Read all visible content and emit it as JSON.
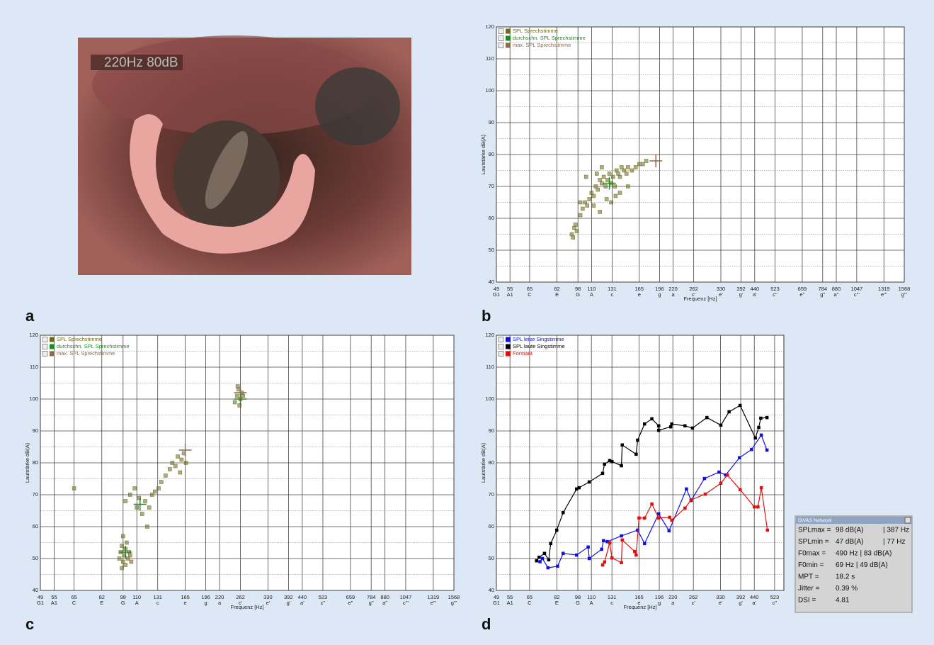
{
  "photo": {
    "panel_label": "a",
    "overlay": "220Hz  80dB"
  },
  "chart_data": [
    {
      "type": "scatter",
      "panel_label": "b",
      "xlabel": "Frequenz [Hz]",
      "ylabel": "Lautstärke dB(A)",
      "xlog": true,
      "xlim": [
        49,
        1568
      ],
      "ylim": [
        40,
        120
      ],
      "xticks": [
        49,
        55,
        65,
        82,
        98,
        110,
        131,
        165,
        196,
        220,
        262,
        330,
        392,
        440,
        523,
        659,
        784,
        880,
        1047,
        1319,
        1568
      ],
      "xtick_notes": [
        "G1",
        "A1",
        "C",
        "E",
        "G",
        "A",
        "c",
        "e",
        "g",
        "a",
        "c'",
        "e'",
        "g'",
        "a'",
        "c''",
        "e''",
        "g''",
        "a''",
        "c'''",
        "e'''",
        "g'''"
      ],
      "yticks": [
        40,
        50,
        60,
        70,
        80,
        90,
        100,
        110,
        120
      ],
      "yminor": [
        45,
        55,
        65,
        75,
        85,
        95,
        105,
        115
      ],
      "grid": true,
      "series": [
        {
          "name": "SPL Sprechstimme",
          "color": "#6b6b1f",
          "marker": "square",
          "x": [
            93,
            95,
            96,
            97,
            94,
            100,
            102,
            104,
            100,
            106,
            108,
            110,
            112,
            114,
            116,
            118,
            120,
            122,
            124,
            126,
            128,
            130,
            132,
            134,
            136,
            138,
            140,
            142,
            145,
            148,
            150,
            155,
            160,
            165,
            170,
            175,
            112,
            118,
            125,
            130,
            135,
            140,
            150,
            105,
            115,
            120
          ],
          "values": [
            55,
            57,
            58,
            56,
            54,
            61,
            63,
            65,
            65,
            64,
            66,
            68,
            67,
            70,
            69,
            72,
            71,
            73,
            70,
            72,
            74,
            71,
            73,
            70,
            75,
            74,
            73,
            76,
            75,
            74,
            76,
            75,
            76,
            77,
            77,
            78,
            64,
            62,
            66,
            65,
            67,
            68,
            70,
            73,
            74,
            76
          ]
        },
        {
          "name": "durchschn. SPL Sprechstimme",
          "color": "#1f8a1f",
          "marker": "cross",
          "x": [
            128
          ],
          "values": [
            71
          ]
        },
        {
          "name": "max. SPL Sprechstimme",
          "color": "#8b6a50",
          "marker": "cross",
          "x": [
            190
          ],
          "values": [
            78
          ]
        }
      ]
    },
    {
      "type": "scatter",
      "panel_label": "c",
      "xlabel": "Frequenz [Hz]",
      "ylabel": "Lautstärke dB(A)",
      "xlog": true,
      "xlim": [
        49,
        1568
      ],
      "ylim": [
        40,
        120
      ],
      "xticks": [
        49,
        55,
        65,
        82,
        98,
        110,
        131,
        165,
        196,
        220,
        262,
        330,
        392,
        440,
        523,
        659,
        784,
        880,
        1047,
        1319,
        1568
      ],
      "xtick_notes": [
        "G1",
        "A1",
        "C",
        "E",
        "G",
        "A",
        "c",
        "e",
        "g",
        "a",
        "c'",
        "e'",
        "g'",
        "a'",
        "c''",
        "e''",
        "g''",
        "a''",
        "c'''",
        "e'''",
        "g'''"
      ],
      "yticks": [
        40,
        50,
        60,
        70,
        80,
        90,
        100,
        110,
        120
      ],
      "yminor": [
        45,
        55,
        65,
        75,
        85,
        95,
        105,
        115
      ],
      "grid": true,
      "series": [
        {
          "name": "SPL Sprechstimme",
          "color": "#6b6b1f",
          "marker": "square",
          "x": [
            65,
            95,
            96,
            97,
            98,
            99,
            100,
            101,
            102,
            103,
            98,
            100,
            104,
            105,
            97,
            100,
            104,
            108,
            110,
            112,
            115,
            118,
            120,
            122,
            125,
            128,
            132,
            135,
            140,
            145,
            148,
            152,
            155,
            160,
            163,
            166,
            158,
            250,
            255,
            258,
            262,
            265,
            268,
            260,
            256
          ],
          "values": [
            72,
            50,
            52,
            54,
            49,
            51,
            53,
            55,
            50,
            52,
            57,
            48,
            51,
            49,
            47,
            68,
            70,
            72,
            66,
            69,
            64,
            68,
            60,
            66,
            70,
            71,
            72,
            74,
            76,
            78,
            80,
            79,
            82,
            81,
            83,
            80,
            77,
            99,
            101,
            103,
            100,
            102,
            101,
            98,
            104
          ]
        },
        {
          "name": "durchschn. SPL Sprechstimme",
          "color": "#1f8a1f",
          "marker": "cross",
          "x": [
            100,
            113,
            262
          ],
          "values": [
            52,
            67,
            100
          ]
        },
        {
          "name": "max. SPL Sprechstimme",
          "color": "#8b6a50",
          "marker": "cross",
          "x": [
            165,
            262
          ],
          "values": [
            84,
            102
          ]
        }
      ]
    },
    {
      "type": "line",
      "panel_label": "d",
      "xlabel": "Frequenz [Hz]",
      "ylabel": "Lautstärke dB(A)",
      "xlog": true,
      "xlim": [
        49,
        566
      ],
      "ylim": [
        40,
        120
      ],
      "xticks": [
        49,
        55,
        65,
        82,
        98,
        110,
        131,
        165,
        196,
        220,
        262,
        330,
        392,
        440,
        523
      ],
      "xtick_notes": [
        "G1",
        "A1",
        "C",
        "E",
        "G",
        "A",
        "c",
        "e",
        "g",
        "a",
        "c'",
        "e'",
        "g'",
        "a'",
        "c''"
      ],
      "yticks": [
        40,
        50,
        60,
        70,
        80,
        90,
        100,
        110,
        120
      ],
      "yminor": [
        45,
        55,
        65,
        75,
        85,
        95,
        105,
        115
      ],
      "grid": true,
      "series": [
        {
          "name": "SPL leise Singstimme",
          "color": "#1010e0",
          "marker": "square",
          "x": [
            69,
            71,
            72.5,
            76,
            82.5,
            86.5,
            97,
            107,
            108,
            120,
            122,
            126,
            142,
            163,
            173,
            195,
            213,
            247,
            257,
            288,
            326,
            345,
            388,
            430,
            467,
            490
          ],
          "values": [
            49.3,
            49,
            50,
            47.1,
            47.6,
            51.6,
            51.1,
            53.6,
            50,
            52.9,
            55.6,
            55.3,
            57.1,
            58.9,
            54.7,
            64,
            58.7,
            71.8,
            68.2,
            75.1,
            77.1,
            76.2,
            81.6,
            84.2,
            88.7,
            84
          ]
        },
        {
          "name": "SPL laute Singstimme",
          "color": "#000000",
          "marker": "square",
          "x": [
            69,
            70.5,
            73.8,
            76.5,
            77.8,
            81.9,
            86.5,
            97,
            99,
            108,
            121,
            123,
            128.5,
            131,
            142,
            143,
            161,
            163,
            173,
            184,
            195,
            195,
            216,
            218,
            244,
            260,
            294,
            331,
            355,
            390,
            444,
            457,
            465,
            490
          ],
          "values": [
            49.3,
            50.4,
            51.6,
            49.6,
            54.7,
            58.9,
            64.4,
            71.8,
            72.2,
            74,
            76.7,
            79.6,
            80.7,
            80.4,
            79.1,
            85.6,
            82.7,
            87.1,
            92.2,
            93.8,
            91.6,
            90.2,
            91.3,
            92.2,
            91.6,
            90.9,
            94.2,
            91.8,
            96,
            98,
            87.8,
            91.1,
            94,
            94.2
          ]
        },
        {
          "name": "Formant",
          "color": "#e01010",
          "marker": "square",
          "x": [
            121,
            123,
            128.5,
            131,
            142,
            143,
            159,
            161,
            165,
            173,
            184,
            195,
            214,
            218,
            244,
            257,
            290,
            331,
            350,
            390,
            440,
            454,
            467,
            492
          ],
          "values": [
            48,
            48.9,
            54.9,
            50.2,
            48.7,
            55.8,
            52.2,
            51.1,
            62.7,
            62.7,
            67.1,
            62.7,
            62.9,
            62,
            65.8,
            68.4,
            70.2,
            73.6,
            76.2,
            71.6,
            66.2,
            66.2,
            72.2,
            58.9
          ]
        }
      ]
    }
  ],
  "divas": {
    "title": "DiVAS Network",
    "panel_label": "d",
    "rows": [
      [
        "SPLmax =",
        "98 dB(A)",
        "| 387 Hz"
      ],
      [
        "SPLmin =",
        "47 dB(A)",
        "| 77 Hz"
      ],
      [
        "F0max =",
        "490 Hz | 83 dB(A)",
        ""
      ],
      [
        "F0min =",
        "69 Hz   | 49 dB(A)",
        ""
      ],
      [
        "MPT =",
        "18.2 s",
        ""
      ],
      [
        "Jitter =",
        "0.39 %",
        ""
      ],
      [
        "DSI =",
        "4.81",
        ""
      ]
    ]
  }
}
